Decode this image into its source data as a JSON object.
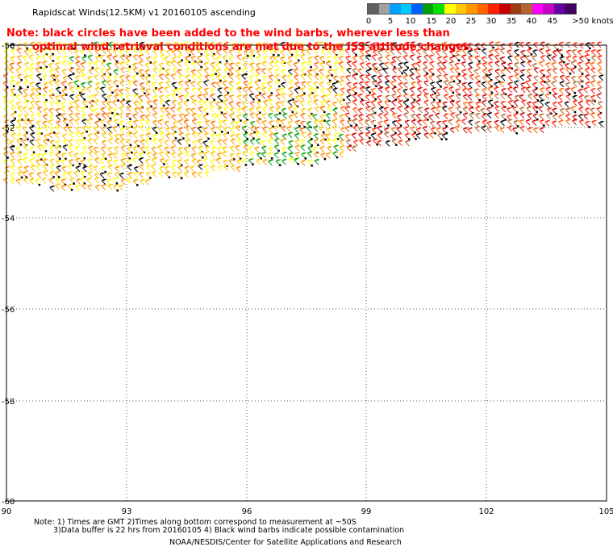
{
  "title": "Rapidscat Winds(12.5KM) v1 20160105 ascending",
  "note_line1": "Note: black circles have been added to the wind barbs, wherever less than",
  "note_line2": "optimal wind retrieval conditions are met due to the ISS attitude changes.",
  "legend": {
    "colors": [
      "#606060",
      "#a0a0a0",
      "#00a0ff",
      "#00c8ff",
      "#0060ff",
      "#00a000",
      "#00e000",
      "#ffff00",
      "#ffc800",
      "#ff9600",
      "#ff6400",
      "#ff2000",
      "#c80000",
      "#a03c14",
      "#b46432",
      "#ff00ff",
      "#c800c8",
      "#6400a0",
      "#400060"
    ],
    "labels": [
      "0",
      "5",
      "10",
      "15",
      "20",
      "25",
      "30",
      "35",
      "40",
      "45",
      ">50 knots"
    ]
  },
  "axes": {
    "x_labels": [
      "90",
      "93",
      "96",
      "99",
      "102",
      "105"
    ],
    "y_labels": [
      "-50",
      "-52",
      "-54",
      "-56",
      "-58",
      "-60"
    ]
  },
  "footer": {
    "line1": "Note: 1) Times are GMT 2)Times along bottom correspond to measurement at ~50S",
    "line2": "3)Data buffer is 22 hrs from 20160105 4) Black wind barbs indicate possible contamination",
    "line3": "NOAA/NESDIS/Center for Satellite Applications and Research"
  }
}
